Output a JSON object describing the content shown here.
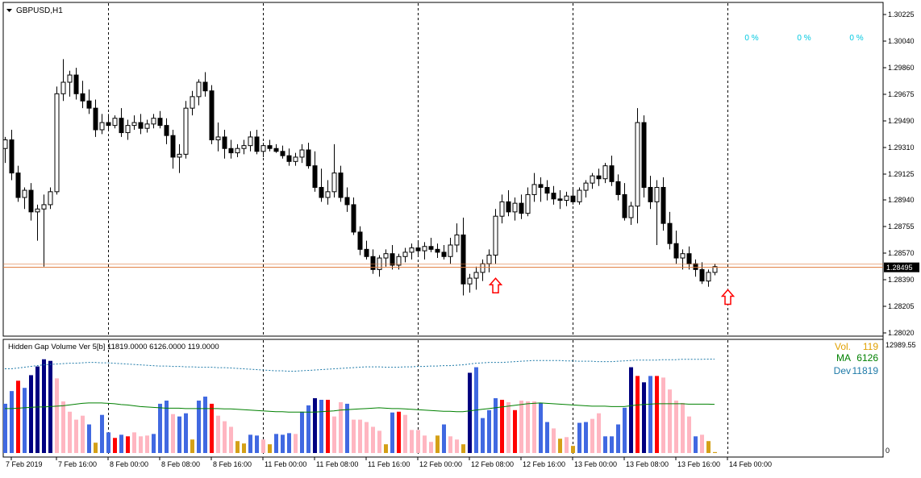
{
  "window": {
    "symbol_title": "GBPUSD,H1",
    "indicator_title": "Hidden Gap Volume Ver 5[b] 11819.0000 6126.0000 119.0000"
  },
  "colors": {
    "bull_candle": "#ffffff",
    "bear_candle": "#000000",
    "price_line": "#e07a3a",
    "arrow": "#ff0000",
    "pct_text": "#00c8e0",
    "vol_text": "#e0a000",
    "ma_text": "#008000",
    "dev_text": "#1e7aa8",
    "bar_blue": "#4169e1",
    "bar_navy": "#000080",
    "bar_red": "#ff0000",
    "bar_pink": "#ffb6c1",
    "bar_gold": "#d4a017",
    "ma_line": "#008000",
    "dev_line": "#1e7aa8"
  },
  "percent_labels": [
    "0 %",
    "0 %",
    "0 %"
  ],
  "chart_data": [
    {
      "type": "candlestick",
      "symbol": "GBPUSD",
      "timeframe": "H1",
      "ylim": [
        1.2804,
        1.3025
      ],
      "y_ticks": [
        "1.30225",
        "1.30040",
        "1.29860",
        "1.29675",
        "1.29490",
        "1.29310",
        "1.29125",
        "1.28940",
        "1.28755",
        "1.28570",
        "1.28390",
        "1.28205",
        "1.28020"
      ],
      "current_price": "1.28495",
      "x_ticks": [
        "7 Feb 2019",
        "7 Feb 16:00",
        "8 Feb 00:00",
        "8 Feb 08:00",
        "8 Feb 16:00",
        "11 Feb 00:00",
        "11 Feb 08:00",
        "11 Feb 16:00",
        "12 Feb 00:00",
        "12 Feb 08:00",
        "12 Feb 16:00",
        "13 Feb 00:00",
        "13 Feb 08:00",
        "13 Feb 16:00",
        "14 Feb 00:00"
      ],
      "period_separators": [
        "8 Feb 00:00",
        "11 Feb 00:00",
        "12 Feb 00:00",
        "13 Feb 00:00",
        "14 Feb 00:00"
      ],
      "arrows": [
        {
          "time": "12 Feb 08:00",
          "direction": "up"
        },
        {
          "time": "14 Feb 00:00",
          "direction": "up"
        }
      ],
      "candles": [
        [
          1.2932,
          1.294,
          1.2922,
          1.2938
        ],
        [
          1.2938,
          1.2945,
          1.291,
          1.2915
        ],
        [
          1.2915,
          1.292,
          1.2895,
          1.2898
        ],
        [
          1.2898,
          1.2905,
          1.289,
          1.2903
        ],
        [
          1.2903,
          1.2908,
          1.2882,
          1.2888
        ],
        [
          1.2888,
          1.2893,
          1.2868,
          1.289
        ],
        [
          1.289,
          1.29,
          1.285,
          1.2893
        ],
        [
          1.2893,
          1.2905,
          1.289,
          1.2902
        ],
        [
          1.2902,
          1.2975,
          1.29,
          1.297
        ],
        [
          1.297,
          1.2994,
          1.2965,
          1.2978
        ],
        [
          1.2978,
          1.2986,
          1.2968,
          1.2983
        ],
        [
          1.2983,
          1.2988,
          1.2966,
          1.297
        ],
        [
          1.297,
          1.2979,
          1.296,
          1.2965
        ],
        [
          1.2965,
          1.2973,
          1.2956,
          1.296
        ],
        [
          1.296,
          1.2966,
          1.294,
          1.2945
        ],
        [
          1.2945,
          1.2956,
          1.2942,
          1.295
        ],
        [
          1.295,
          1.2956,
          1.2945,
          1.2948
        ],
        [
          1.2948,
          1.2955,
          1.2946,
          1.2953
        ],
        [
          1.2953,
          1.296,
          1.294,
          1.2943
        ],
        [
          1.2943,
          1.2952,
          1.2938,
          1.2948
        ],
        [
          1.2948,
          1.2955,
          1.2945,
          1.295
        ],
        [
          1.295,
          1.2956,
          1.2942,
          1.2946
        ],
        [
          1.2946,
          1.2952,
          1.2943,
          1.2949
        ],
        [
          1.2949,
          1.2956,
          1.2946,
          1.2953
        ],
        [
          1.2953,
          1.2958,
          1.2946,
          1.2948
        ],
        [
          1.2948,
          1.2953,
          1.2935,
          1.2941
        ],
        [
          1.2941,
          1.2945,
          1.2918,
          1.2926
        ],
        [
          1.2926,
          1.2935,
          1.2915,
          1.2928
        ],
        [
          1.2928,
          1.2965,
          1.2925,
          1.296
        ],
        [
          1.296,
          1.2972,
          1.2955,
          1.2968
        ],
        [
          1.2968,
          1.298,
          1.2962,
          1.2978
        ],
        [
          1.2978,
          1.2985,
          1.2968,
          1.2972
        ],
        [
          1.2972,
          1.2976,
          1.2935,
          1.2938
        ],
        [
          1.2938,
          1.295,
          1.293,
          1.294
        ],
        [
          1.294,
          1.2945,
          1.2925,
          1.2932
        ],
        [
          1.2932,
          1.2938,
          1.2925,
          1.2929
        ],
        [
          1.2929,
          1.2935,
          1.2926,
          1.2932
        ],
        [
          1.2932,
          1.2938,
          1.2928,
          1.2934
        ],
        [
          1.2934,
          1.2944,
          1.293,
          1.294
        ],
        [
          1.294,
          1.2945,
          1.2928,
          1.293
        ],
        [
          1.293,
          1.2936,
          1.2926,
          1.2934
        ],
        [
          1.2934,
          1.2938,
          1.293,
          1.2932
        ],
        [
          1.2932,
          1.2935,
          1.2929,
          1.293
        ],
        [
          1.293,
          1.2934,
          1.2925,
          1.2927
        ],
        [
          1.2927,
          1.2932,
          1.292,
          1.2923
        ],
        [
          1.2923,
          1.2929,
          1.292,
          1.2926
        ],
        [
          1.2926,
          1.2935,
          1.2922,
          1.2931
        ],
        [
          1.2931,
          1.2936,
          1.2918,
          1.292
        ],
        [
          1.292,
          1.293,
          1.2902,
          1.2905
        ],
        [
          1.2905,
          1.2918,
          1.2895,
          1.2898
        ],
        [
          1.2898,
          1.291,
          1.2893,
          1.2902
        ],
        [
          1.2902,
          1.2935,
          1.2898,
          1.2915
        ],
        [
          1.2915,
          1.292,
          1.2895,
          1.2898
        ],
        [
          1.2898,
          1.2905,
          1.2888,
          1.2893
        ],
        [
          1.2893,
          1.2898,
          1.2872,
          1.2874
        ],
        [
          1.2874,
          1.2878,
          1.2858,
          1.2862
        ],
        [
          1.2862,
          1.2868,
          1.2855,
          1.2857
        ],
        [
          1.2857,
          1.2862,
          1.2845,
          1.2848
        ],
        [
          1.2848,
          1.2858,
          1.2843,
          1.2856
        ],
        [
          1.2856,
          1.2862,
          1.285,
          1.2859
        ],
        [
          1.2859,
          1.2865,
          1.2848,
          1.2851
        ],
        [
          1.2851,
          1.2859,
          1.2848,
          1.2857
        ],
        [
          1.2857,
          1.2863,
          1.2853,
          1.286
        ],
        [
          1.286,
          1.2866,
          1.2855,
          1.2863
        ],
        [
          1.2863,
          1.2868,
          1.2858,
          1.2861
        ],
        [
          1.2861,
          1.2867,
          1.2855,
          1.2864
        ],
        [
          1.2864,
          1.287,
          1.286,
          1.2862
        ],
        [
          1.2862,
          1.2866,
          1.2856,
          1.286
        ],
        [
          1.286,
          1.2865,
          1.2855,
          1.2857
        ],
        [
          1.2857,
          1.287,
          1.2852,
          1.2865
        ],
        [
          1.2865,
          1.288,
          1.286,
          1.2872
        ],
        [
          1.2872,
          1.2884,
          1.283,
          1.2838
        ],
        [
          1.2838,
          1.2845,
          1.2832,
          1.2842
        ],
        [
          1.2842,
          1.285,
          1.2834,
          1.2846
        ],
        [
          1.2846,
          1.2855,
          1.284,
          1.2852
        ],
        [
          1.2852,
          1.2862,
          1.2846,
          1.2858
        ],
        [
          1.2858,
          1.289,
          1.2852,
          1.2885
        ],
        [
          1.2885,
          1.29,
          1.288,
          1.2895
        ],
        [
          1.2895,
          1.2903,
          1.2885,
          1.2888
        ],
        [
          1.2888,
          1.2898,
          1.2882,
          1.2894
        ],
        [
          1.2894,
          1.29,
          1.2883,
          1.2887
        ],
        [
          1.2887,
          1.2905,
          1.2885,
          1.29
        ],
        [
          1.29,
          1.2915,
          1.2895,
          1.2907
        ],
        [
          1.2907,
          1.2912,
          1.2895,
          1.2905
        ],
        [
          1.2905,
          1.291,
          1.2896,
          1.2901
        ],
        [
          1.2901,
          1.2906,
          1.2893,
          1.2897
        ],
        [
          1.2897,
          1.2903,
          1.289,
          1.2896
        ],
        [
          1.2896,
          1.2902,
          1.2892,
          1.2899
        ],
        [
          1.2899,
          1.2904,
          1.2893,
          1.2895
        ],
        [
          1.2895,
          1.2905,
          1.2893,
          1.2903
        ],
        [
          1.2903,
          1.291,
          1.2898,
          1.2908
        ],
        [
          1.2908,
          1.2915,
          1.2904,
          1.2913
        ],
        [
          1.2913,
          1.2918,
          1.2906,
          1.2911
        ],
        [
          1.2911,
          1.2922,
          1.2908,
          1.292
        ],
        [
          1.292,
          1.2927,
          1.2906,
          1.2909
        ],
        [
          1.2909,
          1.2914,
          1.2896,
          1.29
        ],
        [
          1.29,
          1.2908,
          1.2882,
          1.2884
        ],
        [
          1.2884,
          1.2895,
          1.2879,
          1.2892
        ],
        [
          1.2892,
          1.296,
          1.288,
          1.295
        ],
        [
          1.295,
          1.2955,
          1.2898,
          1.2905
        ],
        [
          1.2905,
          1.2913,
          1.289,
          1.2895
        ],
        [
          1.2895,
          1.291,
          1.2865,
          1.2905
        ],
        [
          1.2905,
          1.2912,
          1.2875,
          1.288
        ],
        [
          1.288,
          1.2888,
          1.2862,
          1.2866
        ],
        [
          1.2866,
          1.2875,
          1.2852,
          1.2856
        ],
        [
          1.2856,
          1.2862,
          1.2848,
          1.2859
        ],
        [
          1.2859,
          1.2864,
          1.2848,
          1.2852
        ],
        [
          1.2852,
          1.2855,
          1.2843,
          1.2848
        ],
        [
          1.2848,
          1.2853,
          1.2838,
          1.284
        ],
        [
          1.284,
          1.2848,
          1.2836,
          1.2846
        ],
        [
          1.2846,
          1.2852,
          1.2844,
          1.285
        ]
      ]
    },
    {
      "type": "bar",
      "name": "Hidden Gap Volume Ver 5[b]",
      "ylim": [
        0,
        12989.55
      ],
      "y_ticks": [
        "12989.55",
        "0"
      ],
      "readouts": {
        "vol_label": "Vol.",
        "vol_value": "119",
        "ma_label": "MA",
        "ma_value": "6126",
        "dev_label": "Dev",
        "dev_value": "11819"
      },
      "volume": [
        6200,
        7800,
        9100,
        8200,
        9800,
        10900,
        11800,
        11600,
        9400,
        6500,
        5200,
        4200,
        4700,
        3600,
        1300,
        4800,
        2600,
        1900,
        2300,
        2100,
        2600,
        2100,
        2200,
        2400,
        6200,
        6600,
        4900,
        4600,
        5000,
        1700,
        6600,
        7100,
        6200,
        4700,
        4000,
        3300,
        1500,
        1200,
        2300,
        2200,
        1700,
        1100,
        2400,
        2300,
        2500,
        2400,
        5200,
        6000,
        6900,
        6700,
        6700,
        4600,
        6400,
        6200,
        4200,
        4200,
        3900,
        3300,
        2800,
        1100,
        5100,
        5200,
        4800,
        2900,
        2900,
        2200,
        1400,
        2200,
        3600,
        2100,
        1700,
        1100,
        10100,
        10800,
        4400,
        5400,
        6900,
        6700,
        6400,
        5400,
        6600,
        6500,
        6500,
        6300,
        3900,
        3100,
        1800,
        2000,
        900,
        3800,
        3900,
        4300,
        5000,
        2100,
        2100,
        3600,
        5700,
        10800,
        9700,
        8900,
        9700,
        9700,
        9500,
        8000,
        6600,
        6300,
        4600,
        2100,
        2300,
        1500,
        119
      ],
      "vol_colors": [
        "blue",
        "blue",
        "red",
        "blue",
        "navy",
        "navy",
        "navy",
        "navy",
        "pink",
        "pink",
        "pink",
        "pink",
        "pink",
        "blue",
        "gold",
        "blue",
        "blue",
        "red",
        "blue",
        "red",
        "pink",
        "pink",
        "pink",
        "blue",
        "blue",
        "blue",
        "pink",
        "blue",
        "blue",
        "gold",
        "blue",
        "blue",
        "red",
        "pink",
        "pink",
        "pink",
        "gold",
        "gold",
        "blue",
        "blue",
        "pink",
        "gold",
        "blue",
        "blue",
        "blue",
        "pink",
        "blue",
        "blue",
        "navy",
        "blue",
        "red",
        "pink",
        "pink",
        "blue",
        "pink",
        "pink",
        "pink",
        "pink",
        "pink",
        "gold",
        "blue",
        "red",
        "pink",
        "pink",
        "pink",
        "pink",
        "pink",
        "gold",
        "blue",
        "pink",
        "pink",
        "gold",
        "navy",
        "blue",
        "blue",
        "blue",
        "blue",
        "red",
        "pink",
        "red",
        "pink",
        "pink",
        "pink",
        "blue",
        "blue",
        "pink",
        "gold",
        "pink",
        "gold",
        "blue",
        "blue",
        "pink",
        "pink",
        "blue",
        "blue",
        "blue",
        "blue",
        "navy",
        "red",
        "navy",
        "blue",
        "red",
        "pink",
        "pink",
        "pink",
        "pink",
        "pink",
        "blue",
        "pink",
        "gold",
        "gold"
      ],
      "ma": [
        5600,
        5600,
        5650,
        5700,
        5750,
        5800,
        5800,
        5850,
        5900,
        5950,
        6050,
        6150,
        6250,
        6300,
        6300,
        6300,
        6250,
        6200,
        6100,
        6050,
        5950,
        5850,
        5800,
        5750,
        5700,
        5650,
        5650,
        5650,
        5600,
        5600,
        5600,
        5600,
        5600,
        5600,
        5550,
        5550,
        5500,
        5450,
        5400,
        5350,
        5300,
        5250,
        5200,
        5200,
        5150,
        5150,
        5150,
        5150,
        5150,
        5200,
        5250,
        5300,
        5400,
        5450,
        5500,
        5550,
        5600,
        5650,
        5700,
        5650,
        5600,
        5600,
        5550,
        5500,
        5450,
        5400,
        5350,
        5300,
        5250,
        5250,
        5200,
        5200,
        5300,
        5400,
        5500,
        5600,
        5700,
        5800,
        5900,
        6000,
        6100,
        6200,
        6250,
        6300,
        6250,
        6200,
        6150,
        6100,
        6050,
        6000,
        5950,
        5900,
        5900,
        5900,
        5850,
        5850,
        5850,
        5950,
        6050,
        6100,
        6150,
        6200,
        6200,
        6200,
        6200,
        6200,
        6150,
        6150,
        6150,
        6150,
        6126
      ],
      "dev": [
        10600,
        10600,
        10700,
        10800,
        10900,
        11000,
        11100,
        11150,
        11200,
        11250,
        11300,
        11300,
        11350,
        11400,
        11400,
        11350,
        11350,
        11300,
        11250,
        11200,
        11150,
        11100,
        11050,
        11000,
        10950,
        10950,
        10900,
        10900,
        10850,
        10850,
        10800,
        10800,
        10800,
        10750,
        10750,
        10700,
        10650,
        10600,
        10550,
        10500,
        10450,
        10400,
        10350,
        10350,
        10300,
        10300,
        10350,
        10400,
        10450,
        10500,
        10550,
        10600,
        10650,
        10700,
        10750,
        10800,
        10850,
        10850,
        10850,
        10800,
        10800,
        10800,
        10850,
        10850,
        10900,
        10900,
        10950,
        10950,
        11000,
        11000,
        11050,
        11100,
        11200,
        11300,
        11350,
        11400,
        11400,
        11400,
        11450,
        11500,
        11550,
        11600,
        11650,
        11650,
        11650,
        11650,
        11650,
        11600,
        11600,
        11550,
        11550,
        11550,
        11500,
        11500,
        11500,
        11550,
        11600,
        11650,
        11700,
        11700,
        11700,
        11700,
        11750,
        11750,
        11750,
        11800,
        11800,
        11800,
        11800,
        11819,
        11819
      ]
    }
  ]
}
